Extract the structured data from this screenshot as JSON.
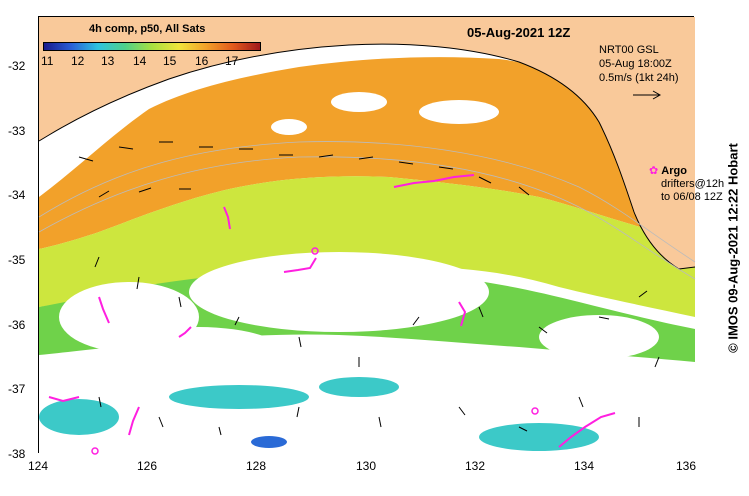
{
  "map": {
    "date_title": "05-Aug-2021 12Z",
    "colorbar": {
      "title": "4h comp, p50, All Sats",
      "ticks": [
        "11",
        "12",
        "13",
        "14",
        "15",
        "16",
        "17"
      ]
    },
    "current_source": "NRT00 GSL",
    "current_time": "05-Aug 18:00Z",
    "current_scale": "0.5m/s (1kt 24h)",
    "argo_label": "Argo",
    "drifters_line1": "drifters@12h",
    "drifters_line2": "to 06/08 12Z",
    "credit": "© IMOS 09-Aug-2021 12:22 Hobart",
    "x_ticks": [
      "124",
      "126",
      "128",
      "130",
      "132",
      "134",
      "136"
    ],
    "y_ticks": [
      "-32",
      "-33",
      "-34",
      "-35",
      "-36",
      "-37",
      "-38"
    ],
    "colors": {
      "land": "#f9c99a",
      "drifter": "#ff1fe0",
      "sst_warm": "#f29a1c",
      "sst_mid": "#c5e83a",
      "sst_cool": "#4ecf4a"
    }
  }
}
